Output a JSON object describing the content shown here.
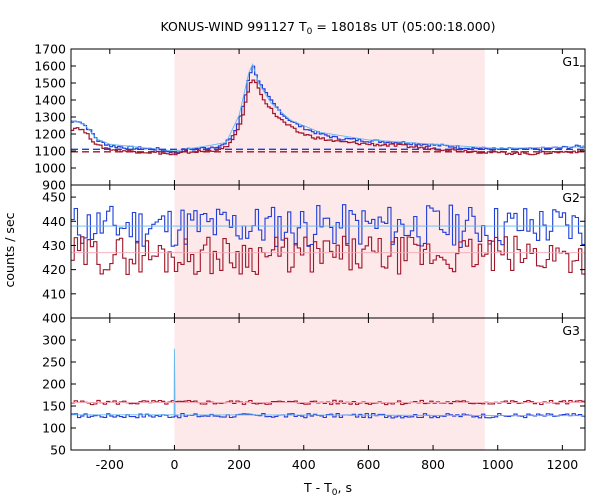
{
  "chart_data": {
    "type": "line",
    "title_main": "KONUS-WIND 991127 T",
    "title_sub": "0",
    "title_rest": " = 18018s UT (05:00:18.000)",
    "xlabel_main": "T - T",
    "xlabel_sub": "0",
    "xlabel_rest": ", s",
    "ylabel": "counts / sec",
    "xlim": [
      -320,
      1270
    ],
    "x_ticks": [
      -200,
      0,
      200,
      400,
      600,
      800,
      1000,
      1200
    ],
    "shaded_interval": [
      0,
      960
    ],
    "colors": {
      "shade": "#fde8ea",
      "blue": "#1f3fd8",
      "red": "#a0162a",
      "light_blue": "#66b8ee",
      "pink": "#f3a8b6"
    },
    "panels": [
      {
        "label": "G1",
        "ylim": [
          900,
          1700
        ],
        "y_ticks": [
          900,
          1000,
          1100,
          1200,
          1300,
          1400,
          1500,
          1600,
          1700
        ],
        "series": [
          {
            "color": "blue",
            "style": "step",
            "points": [
              [
                -320,
                1270
              ],
              [
                -300,
                1280
              ],
              [
                -280,
                1250
              ],
              [
                -260,
                1210
              ],
              [
                -240,
                1160
              ],
              [
                -200,
                1130
              ],
              [
                -150,
                1120
              ],
              [
                -100,
                1115
              ],
              [
                -50,
                1110
              ],
              [
                0,
                1090
              ],
              [
                20,
                1105
              ],
              [
                50,
                1110
              ],
              [
                100,
                1120
              ],
              [
                150,
                1135
              ],
              [
                180,
                1200
              ],
              [
                200,
                1300
              ],
              [
                215,
                1420
              ],
              [
                225,
                1530
              ],
              [
                235,
                1580
              ],
              [
                242,
                1600
              ],
              [
                250,
                1540
              ],
              [
                265,
                1480
              ],
              [
                285,
                1420
              ],
              [
                310,
                1360
              ],
              [
                340,
                1300
              ],
              [
                380,
                1250
              ],
              [
                430,
                1210
              ],
              [
                500,
                1175
              ],
              [
                600,
                1160
              ],
              [
                700,
                1150
              ],
              [
                800,
                1135
              ],
              [
                900,
                1120
              ],
              [
                1000,
                1110
              ],
              [
                1100,
                1110
              ],
              [
                1200,
                1120
              ],
              [
                1270,
                1130
              ]
            ]
          },
          {
            "color": "red",
            "style": "step",
            "points": [
              [
                -320,
                1230
              ],
              [
                -300,
                1240
              ],
              [
                -280,
                1210
              ],
              [
                -260,
                1170
              ],
              [
                -240,
                1130
              ],
              [
                -200,
                1110
              ],
              [
                -150,
                1100
              ],
              [
                -100,
                1095
              ],
              [
                -50,
                1090
              ],
              [
                0,
                1075
              ],
              [
                20,
                1090
              ],
              [
                50,
                1095
              ],
              [
                100,
                1100
              ],
              [
                150,
                1115
              ],
              [
                180,
                1170
              ],
              [
                200,
                1260
              ],
              [
                215,
                1370
              ],
              [
                225,
                1460
              ],
              [
                235,
                1510
              ],
              [
                242,
                1530
              ],
              [
                250,
                1490
              ],
              [
                265,
                1430
              ],
              [
                285,
                1370
              ],
              [
                310,
                1310
              ],
              [
                340,
                1260
              ],
              [
                380,
                1210
              ],
              [
                430,
                1180
              ],
              [
                500,
                1155
              ],
              [
                600,
                1140
              ],
              [
                700,
                1130
              ],
              [
                800,
                1115
              ],
              [
                900,
                1100
              ],
              [
                1000,
                1090
              ],
              [
                1100,
                1085
              ],
              [
                1200,
                1095
              ],
              [
                1270,
                1100
              ]
            ]
          },
          {
            "color": "light_blue",
            "style": "line",
            "points": [
              [
                -320,
                1280
              ],
              [
                -280,
                1260
              ],
              [
                -240,
                1170
              ],
              [
                -200,
                1140
              ],
              [
                -100,
                1120
              ],
              [
                0,
                1100
              ],
              [
                100,
                1130
              ],
              [
                160,
                1150
              ],
              [
                200,
                1310
              ],
              [
                230,
                1560
              ],
              [
                242,
                1610
              ],
              [
                260,
                1500
              ],
              [
                300,
                1380
              ],
              [
                360,
                1280
              ],
              [
                450,
                1210
              ],
              [
                600,
                1165
              ],
              [
                800,
                1140
              ],
              [
                1000,
                1115
              ],
              [
                1270,
                1125
              ]
            ]
          },
          {
            "color": "blue",
            "style": "dash",
            "points": [
              [
                -320,
                1110
              ],
              [
                1270,
                1110
              ]
            ]
          },
          {
            "color": "red",
            "style": "dash",
            "points": [
              [
                -320,
                1095
              ],
              [
                1270,
                1095
              ]
            ]
          }
        ]
      },
      {
        "label": "G2",
        "ylim": [
          400,
          455
        ],
        "y_ticks": [
          400,
          410,
          420,
          430,
          440,
          450
        ],
        "series": [
          {
            "color": "blue",
            "style": "noise",
            "mean": 438,
            "amp": 9,
            "seed": 11,
            "step": 10
          },
          {
            "color": "red",
            "style": "noise",
            "mean": 426,
            "amp": 8,
            "seed": 29,
            "step": 10
          },
          {
            "color": "light_blue",
            "style": "line",
            "points": [
              [
                -320,
                438
              ],
              [
                1270,
                438
              ]
            ]
          },
          {
            "color": "pink",
            "style": "line",
            "points": [
              [
                -320,
                427
              ],
              [
                1270,
                427
              ]
            ]
          }
        ]
      },
      {
        "label": "G3",
        "ylim": [
          50,
          350
        ],
        "y_ticks": [
          50,
          100,
          150,
          200,
          250,
          300
        ],
        "series": [
          {
            "color": "red",
            "style": "noise",
            "mean": 158,
            "amp": 5,
            "seed": 5,
            "step": 10
          },
          {
            "color": "blue",
            "style": "noise",
            "mean": 128,
            "amp": 5,
            "seed": 17,
            "step": 10
          },
          {
            "color": "light_blue",
            "style": "line",
            "points": [
              [
                -320,
                130
              ],
              [
                -1,
                130
              ],
              [
                0,
                280
              ],
              [
                2,
                130
              ],
              [
                1270,
                128
              ]
            ]
          },
          {
            "color": "pink",
            "style": "line",
            "points": [
              [
                -320,
                158
              ],
              [
                1270,
                158
              ]
            ]
          }
        ]
      }
    ]
  }
}
